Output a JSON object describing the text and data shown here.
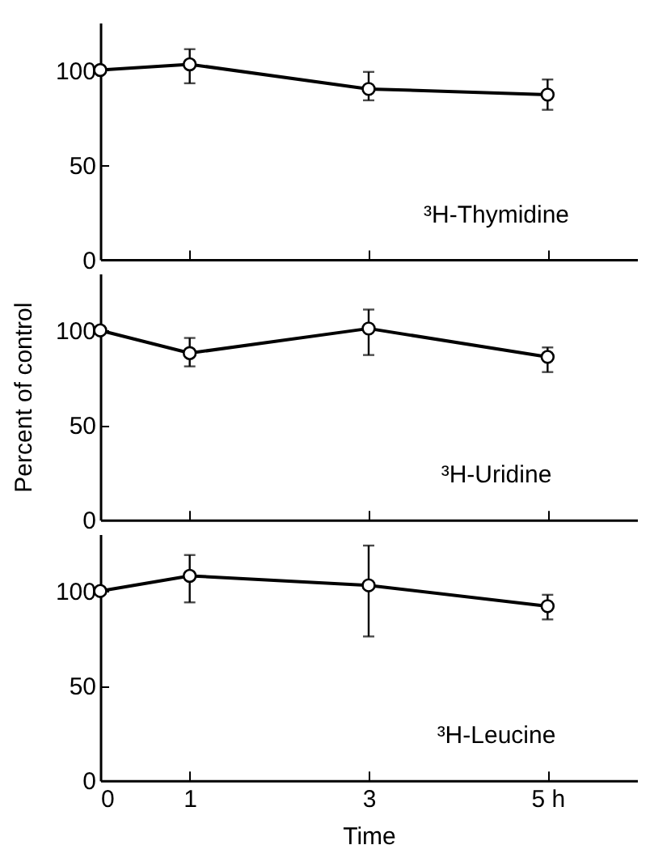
{
  "chart_data": [
    {
      "type": "line",
      "x": [
        0,
        1,
        3,
        5
      ],
      "xlim": [
        0,
        6
      ],
      "xticks": [
        {
          "value": 1,
          "label": null
        },
        {
          "value": 3,
          "label": null
        },
        {
          "value": 5,
          "label": null
        }
      ],
      "ylim": [
        0,
        125
      ],
      "yticks": [
        0,
        50,
        100
      ],
      "tick_labels": "y",
      "marker": "circle",
      "line_style": "solid",
      "grid": false,
      "annotations": [
        "³H-Thymidine"
      ],
      "series": [
        {
          "color": "#000000",
          "values": [
            100,
            103,
            90,
            87
          ],
          "errors": [
            null,
            [
              93,
              111
            ],
            [
              84,
              99
            ],
            [
              79,
              95
            ]
          ]
        }
      ]
    },
    {
      "type": "line",
      "x": [
        0,
        1,
        3,
        5
      ],
      "xlim": [
        0,
        6
      ],
      "xticks": [
        {
          "value": 1,
          "label": null
        },
        {
          "value": 3,
          "label": null
        },
        {
          "value": 5,
          "label": null
        }
      ],
      "ylim": [
        0,
        130
      ],
      "yticks": [
        0,
        50,
        100
      ],
      "tick_labels": "y",
      "marker": "circle",
      "line_style": "solid",
      "grid": false,
      "ylabel": "Percent of control",
      "annotations": [
        "³H-Uridine"
      ],
      "series": [
        {
          "color": "#000000",
          "values": [
            100,
            88,
            101,
            86
          ],
          "errors": [
            null,
            [
              81,
              96
            ],
            [
              87,
              111
            ],
            [
              78,
              91
            ]
          ]
        }
      ]
    },
    {
      "type": "line",
      "x": [
        0,
        1,
        3,
        5
      ],
      "xlim": [
        0,
        6
      ],
      "xticks": [
        0,
        1,
        3,
        {
          "value": 5,
          "label": "5 h"
        }
      ],
      "ylim": [
        0,
        130
      ],
      "yticks": [
        0,
        50,
        100
      ],
      "marker": "circle",
      "line_style": "solid",
      "grid": false,
      "xlabel": "Time",
      "annotations": [
        "³H-Leucine"
      ],
      "series": [
        {
          "color": "#000000",
          "values": [
            100,
            108,
            103,
            92
          ],
          "errors": [
            null,
            [
              94,
              119
            ],
            [
              76,
              124
            ],
            [
              85,
              98
            ]
          ]
        }
      ]
    }
  ]
}
